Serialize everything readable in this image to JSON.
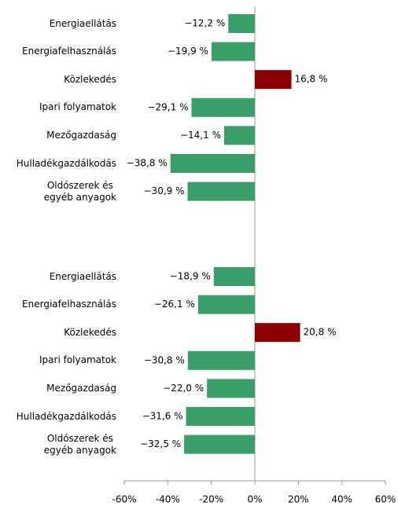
{
  "chart_data": {
    "type": "bar",
    "orientation": "horizontal",
    "groups": [
      {
        "categories": [
          "Energiaellátás",
          "Energiafelhasználás",
          "Közlekedés",
          "Ipari folyamatok",
          "Mezőgazdaság",
          "Hulladékgazdálkodás",
          "Oldószerek és\negyéb anyagok"
        ],
        "values": [
          -12.2,
          -19.9,
          16.8,
          -29.1,
          -14.1,
          -38.8,
          -30.9
        ],
        "value_labels": [
          "−12,2 %",
          "−19,9 %",
          "16,8 %",
          "−29,1 %",
          "−14,1 %",
          "−38,8 %",
          "−30,9 %"
        ],
        "colors": [
          "#3a9e68",
          "#3a9e68",
          "#8b0000",
          "#3a9e68",
          "#3a9e68",
          "#3a9e68",
          "#3a9e68"
        ]
      },
      {
        "categories": [
          "Energiaellátás",
          "Energiafelhasználás",
          "Közlekedés",
          "Ipari folyamatok",
          "Mezőgazdaság",
          "Hulladékgazdálkodás",
          "Oldószerek és\negyéb anyagok"
        ],
        "values": [
          -18.9,
          -26.1,
          20.8,
          -30.8,
          -22.0,
          -31.6,
          -32.5
        ],
        "value_labels": [
          "−18,9 %",
          "−26,1 %",
          "20,8 %",
          "−30,8 %",
          "−22,0 %",
          "−31,6 %",
          "−32,5 %"
        ],
        "colors": [
          "#3a9e68",
          "#3a9e68",
          "#8b0000",
          "#3a9e68",
          "#3a9e68",
          "#3a9e68",
          "#3a9e68"
        ]
      }
    ],
    "xlim": [
      -60,
      60
    ],
    "xticks": [
      {
        "value": -60,
        "label": "-60%"
      },
      {
        "value": -40,
        "label": "-40%"
      },
      {
        "value": -20,
        "label": "-20%"
      },
      {
        "value": 0,
        "label": "0%"
      },
      {
        "value": 20,
        "label": "20%"
      },
      {
        "value": 40,
        "label": "40%"
      },
      {
        "value": 60,
        "label": "60%"
      }
    ]
  }
}
